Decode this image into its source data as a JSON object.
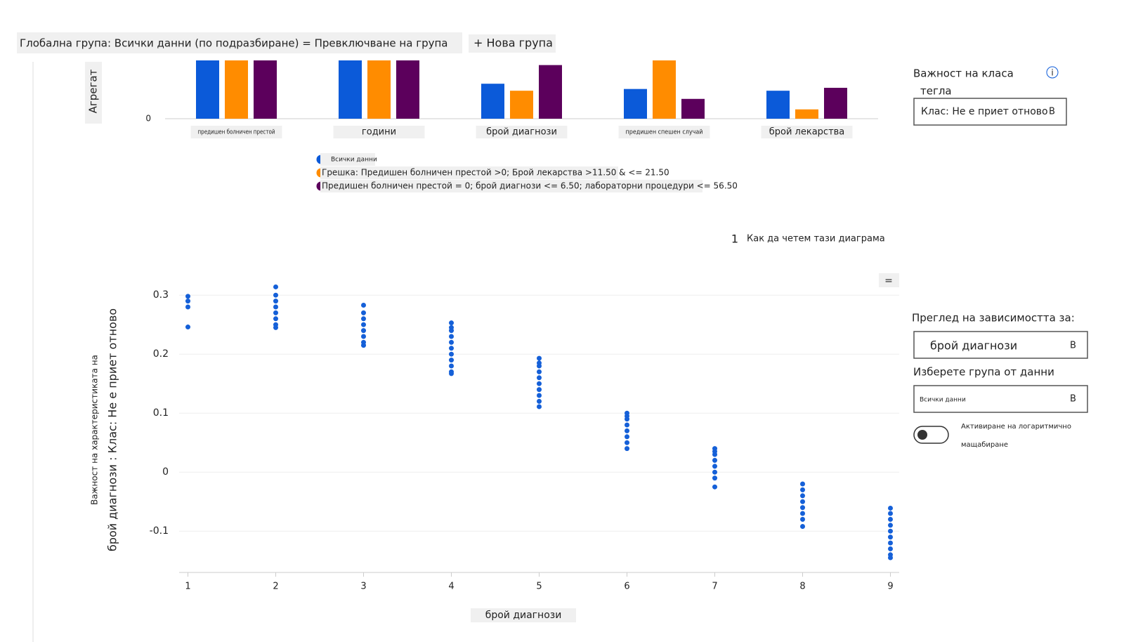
{
  "ui": {
    "header_title": "Глобална група: Всички данни (по подразбиране) = Превключване на група",
    "new_group_button": "+ Нова група",
    "class_importance_label": "Важност на класа",
    "class_importance_label_2": "тегла",
    "info_icon": "i",
    "class_dropdown": "Клас: Не е приет отново",
    "chevron": "В",
    "how_to_read_number": "1",
    "how_to_read": "Как да четем тази диаграма",
    "menu_button": "=",
    "dependence_label": "Преглед на зависимостта за:",
    "dependence_dropdown": "брой диагнози",
    "cohort_label": "Изберете група от данни",
    "cohort_dropdown": "Всички данни",
    "log_scale_label_1": "Активиране на логаритмично",
    "log_scale_label_2": "мащабиране"
  },
  "chart_data": [
    {
      "type": "bar",
      "y_label": "Агрегат",
      "categories": [
        "предишен болничен престой",
        "години",
        "брой диагнози",
        "предишен спешен случай",
        "брой лекарства"
      ],
      "series": [
        {
          "name": "Всички данни",
          "color": "#0b5ad9",
          "values": [
            1,
            1,
            0.6,
            0.51,
            0.48
          ]
        },
        {
          "name": "Грешка: Предишен болничен престой >0; Брой лекарства >11.50 & <= 21.50",
          "color": "#ff8c00",
          "values": [
            1,
            1,
            0.48,
            1,
            0.16
          ]
        },
        {
          "name": "Предишен болничен престой = 0; брой диагнози <= 6.50; лабораторни процедури <= 56.50",
          "color": "#5c005c",
          "values": [
            1,
            1,
            0.92,
            0.34,
            0.53
          ]
        }
      ],
      "ylim": [
        0,
        1
      ],
      "yticks": [
        0
      ]
    },
    {
      "type": "scatter",
      "x_label": "брой диагнози",
      "y_label": "Важност на характеристиката на",
      "y_label_2": "брой диагнози : Клас: Не е приет отново",
      "color": "#1560d8",
      "grid": true,
      "xlim": [
        0.9,
        9.1
      ],
      "xticks": [
        1,
        2,
        3,
        4,
        5,
        6,
        7,
        8,
        9
      ],
      "ylim": [
        -0.17,
        0.33
      ],
      "yticks": [
        -0.1,
        0,
        0.1,
        0.2,
        0.3
      ],
      "x": [
        1,
        1,
        1,
        1,
        2,
        2,
        2,
        2,
        2,
        2,
        2,
        2,
        3,
        3,
        3,
        3,
        3,
        3,
        3,
        3,
        4,
        4,
        4,
        4,
        4,
        4,
        4,
        4,
        4,
        4,
        4,
        5,
        5,
        5,
        5,
        5,
        5,
        5,
        5,
        5,
        5,
        6,
        6,
        6,
        6,
        6,
        6,
        6,
        6,
        7,
        7,
        7,
        7,
        7,
        7,
        7,
        7,
        8,
        8,
        8,
        8,
        8,
        8,
        8,
        8,
        9,
        9,
        9,
        9,
        9,
        9,
        9,
        9,
        9,
        9
      ],
      "values": [
        0.298,
        0.29,
        0.28,
        0.246,
        0.314,
        0.3,
        0.29,
        0.28,
        0.27,
        0.26,
        0.25,
        0.245,
        0.283,
        0.27,
        0.26,
        0.25,
        0.24,
        0.23,
        0.22,
        0.215,
        0.253,
        0.245,
        0.24,
        0.23,
        0.22,
        0.21,
        0.2,
        0.19,
        0.18,
        0.17,
        0.167,
        0.193,
        0.185,
        0.18,
        0.17,
        0.16,
        0.15,
        0.14,
        0.13,
        0.12,
        0.111,
        0.1,
        0.095,
        0.09,
        0.08,
        0.07,
        0.06,
        0.05,
        0.04,
        0.04,
        0.035,
        0.03,
        0.02,
        0.01,
        0,
        -0.01,
        -0.025,
        -0.02,
        -0.03,
        -0.04,
        -0.05,
        -0.06,
        -0.07,
        -0.08,
        -0.092,
        -0.061,
        -0.07,
        -0.08,
        -0.09,
        -0.1,
        -0.11,
        -0.12,
        -0.13,
        -0.14,
        -0.145
      ]
    }
  ]
}
